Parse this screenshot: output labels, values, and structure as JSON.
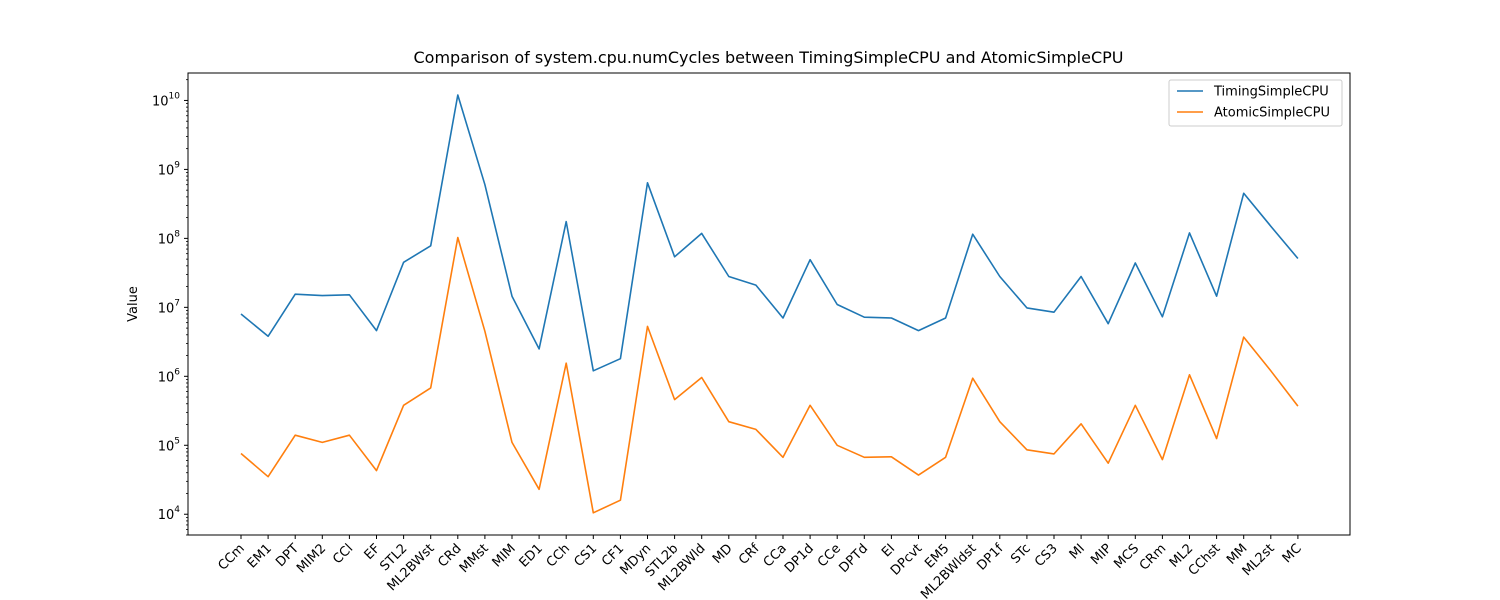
{
  "chart_data": {
    "type": "line",
    "title": "Comparison of system.cpu.numCycles between TimingSimpleCPU and AtomicSimpleCPU",
    "xlabel": "",
    "ylabel": "Value",
    "yscale": "log",
    "ylim": [
      5000,
      25000000000
    ],
    "yticks": [
      {
        "value": 10000,
        "base": "10",
        "exp": "4"
      },
      {
        "value": 100000,
        "base": "10",
        "exp": "5"
      },
      {
        "value": 1000000,
        "base": "10",
        "exp": "6"
      },
      {
        "value": 10000000,
        "base": "10",
        "exp": "7"
      },
      {
        "value": 100000000,
        "base": "10",
        "exp": "8"
      },
      {
        "value": 1000000000,
        "base": "10",
        "exp": "9"
      },
      {
        "value": 10000000000,
        "base": "10",
        "exp": "10"
      }
    ],
    "grid": false,
    "legend_position": "top-right",
    "categories": [
      "CCm",
      "EM1",
      "DPT",
      "MIM2",
      "CCl",
      "EF",
      "STL2",
      "ML2BWst",
      "CRd",
      "MMst",
      "MIM",
      "ED1",
      "CCh",
      "CS1",
      "CF1",
      "MDyn",
      "STL2b",
      "ML2BWld",
      "MD",
      "CRf",
      "CCa",
      "DP1d",
      "CCe",
      "DPTd",
      "EI",
      "DPcvt",
      "EM5",
      "ML2BWldst",
      "DP1f",
      "STc",
      "CS3",
      "MI",
      "MIP",
      "MCS",
      "CRm",
      "ML2",
      "CChst",
      "MM",
      "ML2st",
      "MC"
    ],
    "series": [
      {
        "name": "TimingSimpleCPU",
        "color": "#1f77b4",
        "values": [
          8000000,
          3800000,
          15500000,
          14800000,
          15200000,
          4600000,
          45000000,
          78000000,
          12000000000,
          600000000,
          14500000,
          2500000,
          175000000,
          1200000,
          1800000,
          640000000,
          54000000,
          118000000,
          28000000,
          21000000,
          7000000,
          49000000,
          11000000,
          7200000,
          7000000,
          4600000,
          7000000,
          115000000,
          28000000,
          9800000,
          8500000,
          28000000,
          5800000,
          44000000,
          7300000,
          120000000,
          14500000,
          450000000,
          150000000,
          51000000
        ]
      },
      {
        "name": "AtomicSimpleCPU",
        "color": "#ff7f0e",
        "values": [
          76000,
          35000,
          140000,
          110000,
          140000,
          43000,
          380000,
          680000,
          103000000,
          4500000,
          110000,
          23000,
          1550000,
          10500,
          16000,
          5300000,
          460000,
          960000,
          220000,
          170000,
          67000,
          380000,
          100000,
          67000,
          68000,
          37000,
          67000,
          940000,
          220000,
          86000,
          75000,
          205000,
          55000,
          380000,
          62000,
          1050000,
          125000,
          3700000,
          1200000,
          370000
        ]
      }
    ]
  }
}
